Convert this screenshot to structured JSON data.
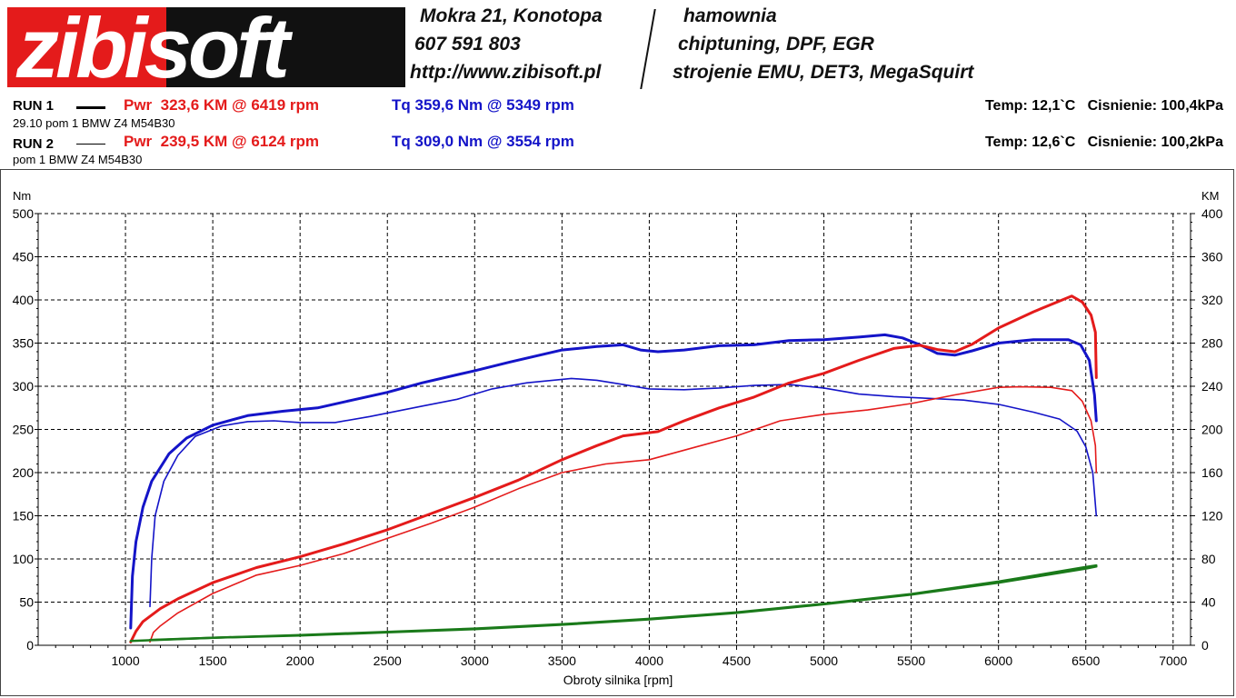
{
  "header": {
    "logo_text": "zibisoft",
    "address": "Mokra 21, Konotopa",
    "phone": "607 591 803",
    "url": "http://www.zibisoft.pl",
    "service_1": "hamownia",
    "service_2": "chiptuning, DPF, EGR",
    "service_3": "strojenie EMU, DET3, MegaSquirt"
  },
  "runs": [
    {
      "label": "RUN 1",
      "description": "29.10 pom 1 BMW Z4 M54B30",
      "pwr": "Pwr  323,6 KM @ 6419 rpm",
      "tq": "Tq 359,6 Nm @ 5349 rpm",
      "conditions": "Temp: 12,1`C   Cisnienie: 100,4kPa"
    },
    {
      "label": "RUN 2",
      "description": "pom 1 BMW Z4 M54B30",
      "pwr": "Pwr  239,5 KM @ 6124 rpm",
      "tq": "Tq 309,0 Nm @ 3554 rpm",
      "conditions": "Temp: 12,6`C   Cisnienie: 100,2kPa"
    }
  ],
  "chart_data": {
    "type": "line",
    "xlabel": "Obroty silnika [rpm]",
    "ylabel_left": "Nm",
    "ylabel_right": "KM",
    "xlim": [
      500,
      7100
    ],
    "ylim_left": [
      0,
      500
    ],
    "ylim_right": [
      0,
      400
    ],
    "x_ticks": [
      1000,
      1500,
      2000,
      2500,
      3000,
      3500,
      4000,
      4500,
      5000,
      5500,
      6000,
      6500,
      7000
    ],
    "y_ticks_left": [
      0,
      50,
      100,
      150,
      200,
      250,
      300,
      350,
      400,
      450,
      500
    ],
    "y_ticks_right": [
      0,
      40,
      80,
      120,
      160,
      200,
      240,
      280,
      320,
      360,
      400
    ],
    "grid": true,
    "colors": {
      "torque": "#1414c8",
      "power": "#e41b1b",
      "loss": "#1a7a1a"
    },
    "series": [
      {
        "run": 1,
        "kind": "torque",
        "axis": "left",
        "width": 3,
        "points": [
          [
            1030,
            20
          ],
          [
            1040,
            80
          ],
          [
            1060,
            120
          ],
          [
            1100,
            160
          ],
          [
            1150,
            190
          ],
          [
            1250,
            222
          ],
          [
            1350,
            240
          ],
          [
            1500,
            255
          ],
          [
            1700,
            266
          ],
          [
            1900,
            271
          ],
          [
            2100,
            275
          ],
          [
            2300,
            284
          ],
          [
            2500,
            293
          ],
          [
            2700,
            304
          ],
          [
            3000,
            318
          ],
          [
            3200,
            328
          ],
          [
            3500,
            342
          ],
          [
            3700,
            346
          ],
          [
            3850,
            348
          ],
          [
            3950,
            342
          ],
          [
            4050,
            340
          ],
          [
            4200,
            342
          ],
          [
            4400,
            347
          ],
          [
            4600,
            348
          ],
          [
            4800,
            353
          ],
          [
            5000,
            354
          ],
          [
            5200,
            357
          ],
          [
            5349,
            359.6
          ],
          [
            5450,
            356
          ],
          [
            5550,
            348
          ],
          [
            5650,
            338
          ],
          [
            5750,
            336
          ],
          [
            5850,
            341
          ],
          [
            6000,
            350
          ],
          [
            6200,
            354
          ],
          [
            6400,
            354
          ],
          [
            6470,
            348
          ],
          [
            6520,
            330
          ],
          [
            6550,
            290
          ],
          [
            6560,
            260
          ]
        ]
      },
      {
        "run": 2,
        "kind": "torque",
        "axis": "left",
        "width": 1.6,
        "points": [
          [
            1140,
            45
          ],
          [
            1150,
            100
          ],
          [
            1170,
            150
          ],
          [
            1220,
            190
          ],
          [
            1300,
            220
          ],
          [
            1400,
            242
          ],
          [
            1550,
            254
          ],
          [
            1700,
            259
          ],
          [
            1850,
            260
          ],
          [
            2000,
            258
          ],
          [
            2200,
            258
          ],
          [
            2400,
            265
          ],
          [
            2700,
            277
          ],
          [
            2900,
            285
          ],
          [
            3100,
            297
          ],
          [
            3300,
            304
          ],
          [
            3554,
            309
          ],
          [
            3700,
            307
          ],
          [
            3850,
            302
          ],
          [
            4000,
            297
          ],
          [
            4200,
            296
          ],
          [
            4400,
            298
          ],
          [
            4600,
            301
          ],
          [
            4800,
            302
          ],
          [
            5000,
            298
          ],
          [
            5200,
            291
          ],
          [
            5400,
            288
          ],
          [
            5600,
            286
          ],
          [
            5800,
            284
          ],
          [
            6000,
            279
          ],
          [
            6200,
            270
          ],
          [
            6350,
            262
          ],
          [
            6450,
            248
          ],
          [
            6500,
            230
          ],
          [
            6540,
            200
          ],
          [
            6560,
            150
          ]
        ]
      },
      {
        "run": 1,
        "kind": "power",
        "axis": "right",
        "width": 3,
        "points": [
          [
            1030,
            3
          ],
          [
            1060,
            13
          ],
          [
            1100,
            22
          ],
          [
            1200,
            34
          ],
          [
            1300,
            43
          ],
          [
            1500,
            58
          ],
          [
            1750,
            72
          ],
          [
            2000,
            82
          ],
          [
            2250,
            94
          ],
          [
            2500,
            107
          ],
          [
            2750,
            122
          ],
          [
            3000,
            137
          ],
          [
            3250,
            153
          ],
          [
            3500,
            172
          ],
          [
            3700,
            185
          ],
          [
            3850,
            194
          ],
          [
            4050,
            198
          ],
          [
            4200,
            208
          ],
          [
            4400,
            220
          ],
          [
            4600,
            230
          ],
          [
            4800,
            243
          ],
          [
            5000,
            252
          ],
          [
            5200,
            264
          ],
          [
            5400,
            275
          ],
          [
            5550,
            278
          ],
          [
            5650,
            274
          ],
          [
            5750,
            272
          ],
          [
            5850,
            279
          ],
          [
            6000,
            294
          ],
          [
            6200,
            309
          ],
          [
            6419,
            323.6
          ],
          [
            6480,
            318
          ],
          [
            6530,
            306
          ],
          [
            6555,
            290
          ],
          [
            6560,
            248
          ]
        ]
      },
      {
        "run": 2,
        "kind": "power",
        "axis": "right",
        "width": 1.6,
        "points": [
          [
            1140,
            3
          ],
          [
            1160,
            12
          ],
          [
            1200,
            18
          ],
          [
            1300,
            30
          ],
          [
            1500,
            48
          ],
          [
            1750,
            65
          ],
          [
            2000,
            74
          ],
          [
            2250,
            85
          ],
          [
            2500,
            99
          ],
          [
            2750,
            113
          ],
          [
            3000,
            128
          ],
          [
            3250,
            145
          ],
          [
            3500,
            160
          ],
          [
            3750,
            168
          ],
          [
            4000,
            172
          ],
          [
            4250,
            183
          ],
          [
            4500,
            194
          ],
          [
            4750,
            208
          ],
          [
            5000,
            214
          ],
          [
            5250,
            218
          ],
          [
            5500,
            224
          ],
          [
            5750,
            232
          ],
          [
            6000,
            239
          ],
          [
            6124,
            239.5
          ],
          [
            6300,
            239
          ],
          [
            6420,
            236
          ],
          [
            6480,
            226
          ],
          [
            6530,
            208
          ],
          [
            6555,
            185
          ],
          [
            6560,
            160
          ]
        ]
      },
      {
        "run": 1,
        "kind": "loss",
        "axis": "right",
        "width": 2.5,
        "points": [
          [
            1030,
            4
          ],
          [
            1500,
            7
          ],
          [
            2000,
            9
          ],
          [
            2500,
            12
          ],
          [
            3000,
            15
          ],
          [
            3500,
            19
          ],
          [
            4000,
            24
          ],
          [
            4500,
            30
          ],
          [
            5000,
            38
          ],
          [
            5500,
            47
          ],
          [
            6000,
            58
          ],
          [
            6500,
            71
          ],
          [
            6560,
            73
          ]
        ]
      },
      {
        "run": 2,
        "kind": "loss",
        "axis": "right",
        "width": 2.5,
        "points": [
          [
            1140,
            5
          ],
          [
            1500,
            7
          ],
          [
            2000,
            9.5
          ],
          [
            2500,
            12.5
          ],
          [
            3000,
            15.5
          ],
          [
            3500,
            19.5
          ],
          [
            4000,
            24.5
          ],
          [
            4500,
            30.5
          ],
          [
            5000,
            38.5
          ],
          [
            5500,
            47.5
          ],
          [
            6000,
            59
          ],
          [
            6500,
            72.5
          ],
          [
            6560,
            74
          ]
        ]
      }
    ]
  }
}
